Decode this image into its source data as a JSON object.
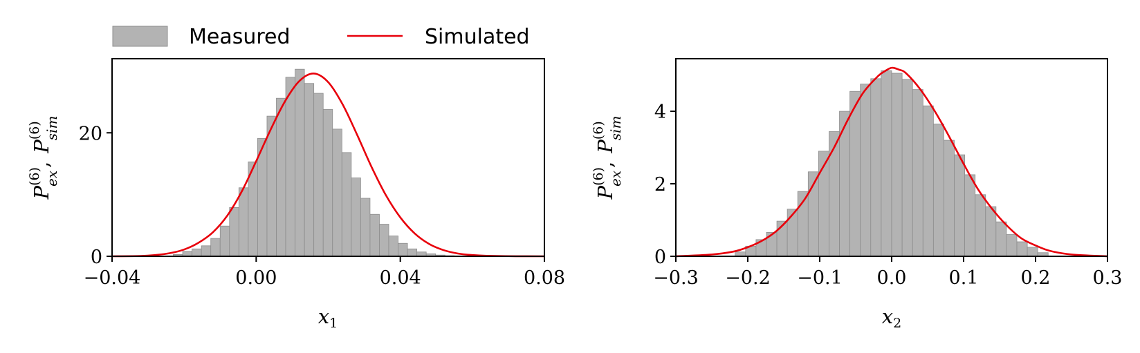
{
  "colors": {
    "bar_fill": "#b3b3b3",
    "bar_edge": "#8c8c8c",
    "curve": "#e8000b",
    "axis": "#000000"
  },
  "legend": {
    "placement": "top-left",
    "measured_label": "Measured",
    "simulated_label": "Simulated"
  },
  "chart_data": [
    {
      "type": "bar",
      "xlabel": "x",
      "xlabel_sub": "1",
      "ylabel": "P",
      "ylabel_parts": {
        "sup": "(6)",
        "sub_ex": "ex",
        "sep": ",",
        "sub_sim": "sim"
      },
      "xlim": [
        -0.04,
        0.08
      ],
      "ylim": [
        0,
        32
      ],
      "xticks": [
        -0.04,
        0.0,
        0.04,
        0.08
      ],
      "xtick_labels": [
        "−0.04",
        "0.00",
        "0.04",
        "0.08"
      ],
      "yticks": [
        0,
        20
      ],
      "ytick_labels": [
        "0",
        "20"
      ],
      "grid": false,
      "series": [
        {
          "name": "Measured",
          "kind": "histogram",
          "bin_width": 0.0026,
          "bin_centers": [
            -0.0217,
            -0.0191,
            -0.0165,
            -0.0139,
            -0.0113,
            -0.0087,
            -0.0061,
            -0.0035,
            -0.0009,
            0.0017,
            0.0043,
            0.0069,
            0.0095,
            0.0121,
            0.0147,
            0.0173,
            0.0199,
            0.0225,
            0.0251,
            0.0277,
            0.0303,
            0.0329,
            0.0355,
            0.0381,
            0.0407,
            0.0433,
            0.0459,
            0.0485,
            0.0511,
            0.0537,
            0.0563
          ],
          "values": [
            0.3,
            0.8,
            1.2,
            1.7,
            2.9,
            4.9,
            7.9,
            11.1,
            15.3,
            19.1,
            22.7,
            25.6,
            29.0,
            30.3,
            28.0,
            26.4,
            23.8,
            20.6,
            16.8,
            12.7,
            9.4,
            6.8,
            5.2,
            3.3,
            2.1,
            1.2,
            0.7,
            0.4,
            0.2,
            0.1,
            0.05
          ]
        },
        {
          "name": "Simulated",
          "kind": "line",
          "x": [
            -0.04,
            -0.032,
            -0.028,
            -0.024,
            -0.02,
            -0.016,
            -0.012,
            -0.008,
            -0.004,
            0.0,
            0.004,
            0.008,
            0.012,
            0.016,
            0.02,
            0.024,
            0.028,
            0.032,
            0.036,
            0.04,
            0.044,
            0.048,
            0.052,
            0.056,
            0.06,
            0.064,
            0.072,
            0.08
          ],
          "y": [
            0.0,
            0.05,
            0.2,
            0.5,
            1.1,
            2.2,
            3.9,
            6.6,
            10.5,
            15.4,
            20.5,
            25.1,
            28.4,
            29.6,
            28.2,
            24.6,
            19.7,
            14.5,
            9.9,
            6.3,
            3.7,
            2.0,
            1.0,
            0.45,
            0.2,
            0.08,
            0.01,
            0.0
          ]
        }
      ]
    },
    {
      "type": "bar",
      "xlabel": "x",
      "xlabel_sub": "2",
      "ylabel": "P",
      "ylabel_parts": {
        "sup": "(6)",
        "sub_ex": "ex",
        "sep": ",",
        "sub_sim": "sim"
      },
      "xlim": [
        -0.3,
        0.3
      ],
      "ylim": [
        0,
        5.45
      ],
      "xticks": [
        -0.3,
        -0.2,
        -0.1,
        0.0,
        0.1,
        0.2,
        0.3
      ],
      "xtick_labels": [
        "−0.3",
        "−0.2",
        "−0.1",
        "0.0",
        "0.1",
        "0.2",
        "0.3"
      ],
      "yticks": [
        0,
        2,
        4
      ],
      "ytick_labels": [
        "0",
        "2",
        "4"
      ],
      "grid": false,
      "series": [
        {
          "name": "Measured",
          "kind": "histogram",
          "bin_width": 0.0145,
          "bin_centers": [
            -0.2103,
            -0.1958,
            -0.1813,
            -0.1668,
            -0.1523,
            -0.1378,
            -0.1233,
            -0.1088,
            -0.0943,
            -0.0798,
            -0.0653,
            -0.0508,
            -0.0363,
            -0.0218,
            -0.0073,
            0.0073,
            0.0218,
            0.0363,
            0.0508,
            0.0653,
            0.0798,
            0.0943,
            0.1088,
            0.1233,
            0.1378,
            0.1523,
            0.1668,
            0.1813,
            0.1958,
            0.2103
          ],
          "values": [
            0.12,
            0.28,
            0.46,
            0.66,
            0.97,
            1.3,
            1.79,
            2.33,
            2.9,
            3.44,
            4.0,
            4.55,
            4.75,
            4.9,
            5.12,
            5.05,
            4.88,
            4.6,
            4.15,
            3.65,
            3.2,
            2.8,
            2.25,
            1.7,
            1.37,
            0.95,
            0.6,
            0.4,
            0.25,
            0.1
          ]
        },
        {
          "name": "Simulated",
          "kind": "line",
          "x": [
            -0.3,
            -0.25,
            -0.22,
            -0.2,
            -0.18,
            -0.16,
            -0.14,
            -0.12,
            -0.1,
            -0.08,
            -0.06,
            -0.04,
            -0.02,
            -0.01,
            0.0,
            0.01,
            0.02,
            0.04,
            0.06,
            0.08,
            0.1,
            0.12,
            0.14,
            0.16,
            0.18,
            0.2,
            0.22,
            0.25,
            0.3
          ],
          "y": [
            0.0,
            0.05,
            0.13,
            0.25,
            0.43,
            0.7,
            1.1,
            1.6,
            2.3,
            3.0,
            3.8,
            4.5,
            4.95,
            5.1,
            5.2,
            5.15,
            5.05,
            4.6,
            4.0,
            3.3,
            2.55,
            1.85,
            1.3,
            0.85,
            0.5,
            0.3,
            0.15,
            0.05,
            0.0
          ]
        }
      ]
    }
  ]
}
